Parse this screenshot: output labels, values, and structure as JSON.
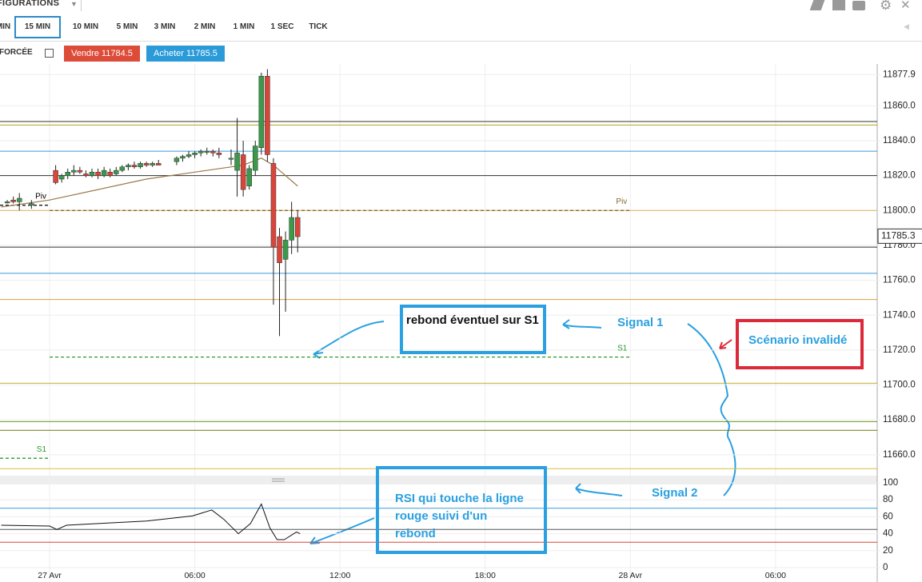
{
  "toolbar": {
    "config_label": "FIGURATIONS",
    "timeframes": [
      "MIN",
      "15 MIN",
      "10 MIN",
      "5 MIN",
      "3 MIN",
      "2 MIN",
      "1 MIN",
      "1 SEC",
      "TICK"
    ],
    "selected": 1
  },
  "order_bar": {
    "forced_label": "FORCÉE",
    "sell": "Vendre 11784.5",
    "buy": "Acheter 11785.5"
  },
  "chart_data": [
    {
      "type": "candlestick",
      "x": [
        -1.75,
        -1.5,
        -1.25,
        -0.75,
        0.25,
        0.5,
        0.75,
        1.0,
        1.25,
        1.5,
        1.75,
        2.0,
        2.25,
        2.5,
        2.75,
        3.0,
        3.25,
        3.5,
        3.75,
        4.0,
        4.25,
        4.5,
        5.25,
        5.5,
        5.75,
        6.0,
        6.25,
        6.5,
        6.75,
        7.0,
        7.5,
        7.75,
        8.0,
        8.25,
        8.5,
        8.75,
        9.0,
        9.25,
        9.5,
        9.75,
        10.0,
        10.25
      ],
      "open": [
        11805,
        11806,
        11805,
        11803,
        11823,
        11818,
        11820,
        11822,
        11823,
        11821,
        11820,
        11822,
        11820,
        11822,
        11821,
        11823,
        11825,
        11826,
        11825,
        11827,
        11826,
        11827,
        11828,
        11830,
        11831,
        11832,
        11833,
        11834,
        11834,
        11833,
        11830,
        11823,
        11832,
        11814,
        11823,
        11836,
        11877,
        11827,
        11785,
        11772,
        11783,
        11796
      ],
      "high": [
        11806,
        11808,
        11810,
        11806,
        11826,
        11821,
        11824,
        11826,
        11825,
        11823,
        11824,
        11824,
        11825,
        11824,
        11825,
        11826,
        11827,
        11828,
        11828,
        11828,
        11828,
        11829,
        11831,
        11832,
        11834,
        11834,
        11835,
        11836,
        11835,
        11836,
        11835,
        11853,
        11840,
        11826,
        11840,
        11879,
        11881,
        11830,
        11790,
        11788,
        11805,
        11800
      ],
      "low": [
        11804,
        11804,
        11800,
        11801,
        11815,
        11816,
        11818,
        11820,
        11821,
        11819,
        11819,
        11818,
        11819,
        11819,
        11820,
        11822,
        11823,
        11824,
        11824,
        11825,
        11825,
        11826,
        11826,
        11828,
        11830,
        11830,
        11831,
        11832,
        11831,
        11830,
        11826,
        11808,
        11808,
        11812,
        11820,
        11832,
        11828,
        11746,
        11728,
        11742,
        11775,
        11776
      ],
      "close": [
        11805,
        11805,
        11807,
        11804,
        11816,
        11820,
        11822,
        11823,
        11822,
        11820,
        11822,
        11820,
        11823,
        11820,
        11823,
        11825,
        11826,
        11825,
        11827,
        11826,
        11827,
        11826,
        11830,
        11831,
        11832,
        11833,
        11834,
        11834,
        11833,
        11832,
        11830,
        11833,
        11812,
        11824,
        11837,
        11877,
        11832,
        11779,
        11770,
        11783,
        11796,
        11785
      ],
      "up_color": "#3a9a4a",
      "down_color": "#d9453a",
      "xlim": [
        -2.05,
        34.2
      ],
      "xticks": [
        {
          "value": 0,
          "label": "27 Avr"
        },
        {
          "value": 6,
          "label": "06:00"
        },
        {
          "value": 12,
          "label": "12:00"
        },
        {
          "value": 18,
          "label": "18:00"
        },
        {
          "value": 24,
          "label": "28 Avr"
        },
        {
          "value": 30,
          "label": "06:00"
        }
      ],
      "ylim": [
        11648,
        11884
      ],
      "yticks": [
        {
          "value": 11660,
          "label": "11660.0"
        },
        {
          "value": 11680,
          "label": "11680.0"
        },
        {
          "value": 11700,
          "label": "11700.0"
        },
        {
          "value": 11720,
          "label": "11720.0"
        },
        {
          "value": 11740,
          "label": "11740.0"
        },
        {
          "value": 11760,
          "label": "11760.0"
        },
        {
          "value": 11780,
          "label": "11780.0"
        },
        {
          "value": 11800,
          "label": "11800.0"
        },
        {
          "value": 11820,
          "label": "11820.0"
        },
        {
          "value": 11840,
          "label": "11840.0"
        },
        {
          "value": 11860,
          "label": "11860.0"
        },
        11877.9
      ],
      "grid": true,
      "levels": [
        {
          "value": 11851,
          "color": "#333333"
        },
        {
          "value": 11849,
          "color": "#b5a21a"
        },
        {
          "value": 11834,
          "color": "#3a9ad9"
        },
        {
          "value": 11820,
          "color": "#333333"
        },
        {
          "value": 11800,
          "color": "#e0b060"
        },
        {
          "value": 11803,
          "from": -2.05,
          "to": 0,
          "color": "#000000",
          "dashed": true,
          "label": "Piv"
        },
        {
          "value": 11800,
          "from": 0,
          "to": 24,
          "color": "#8a6a30",
          "dashed": true,
          "label": "Piv"
        },
        {
          "value": 11779,
          "color": "#333333"
        },
        {
          "value": 11764,
          "color": "#3a9ad9"
        },
        {
          "value": 11749,
          "color": "#e0a040"
        },
        {
          "value": 11716,
          "from": 0,
          "to": 24,
          "color": "#2a9a2a",
          "dashed": true,
          "label": "S1"
        },
        {
          "value": 11701,
          "color": "#c8b030"
        },
        {
          "value": 11679,
          "color": "#6a9a20"
        },
        {
          "value": 11674,
          "color": "#6b7b10"
        },
        {
          "value": 11652,
          "color": "#d8c040"
        },
        {
          "value": 11658,
          "from": -2.05,
          "to": 0,
          "color": "#2a9a2a",
          "dashed": true,
          "label": "S1"
        }
      ],
      "moving_average": {
        "x": [
          -2,
          0,
          2,
          4,
          6,
          7,
          8,
          8.75,
          9.25,
          10.25
        ],
        "values": [
          11802,
          11806,
          11812,
          11818,
          11822,
          11824,
          11826,
          11830,
          11826,
          11814
        ],
        "color": "#9a7a4a"
      },
      "last_price": 11785.3
    },
    {
      "type": "line",
      "x": [
        -2,
        0,
        0.3,
        0.7,
        2,
        4,
        5.9,
        6.7,
        7.2,
        7.8,
        8.3,
        8.75,
        9.1,
        9.4,
        9.7,
        10.2,
        10.35
      ],
      "series": [
        {
          "color": "#111111",
          "values": [
            50,
            49,
            45,
            50,
            52,
            55,
            61,
            68,
            57,
            40,
            52,
            75,
            47,
            33,
            33,
            42,
            40
          ]
        }
      ],
      "xlim": [
        -2.05,
        34.2
      ],
      "ylim": [
        0,
        100
      ],
      "yticks": [
        0,
        20,
        40,
        60,
        80,
        100
      ],
      "levels": [
        {
          "value": 70,
          "color": "#3a9ad9"
        },
        {
          "value": 45,
          "color": "#555555"
        },
        {
          "value": 30,
          "color": "#d9453a"
        }
      ]
    }
  ],
  "annotations": {
    "s1_note": "rebond éventuel sur S1",
    "signal1": "Signal 1",
    "invalid": "Scénario invalidé",
    "signal2": "Signal 2",
    "rsi_note": "RSI qui touche la ligne rouge suivi d'un rebond"
  }
}
